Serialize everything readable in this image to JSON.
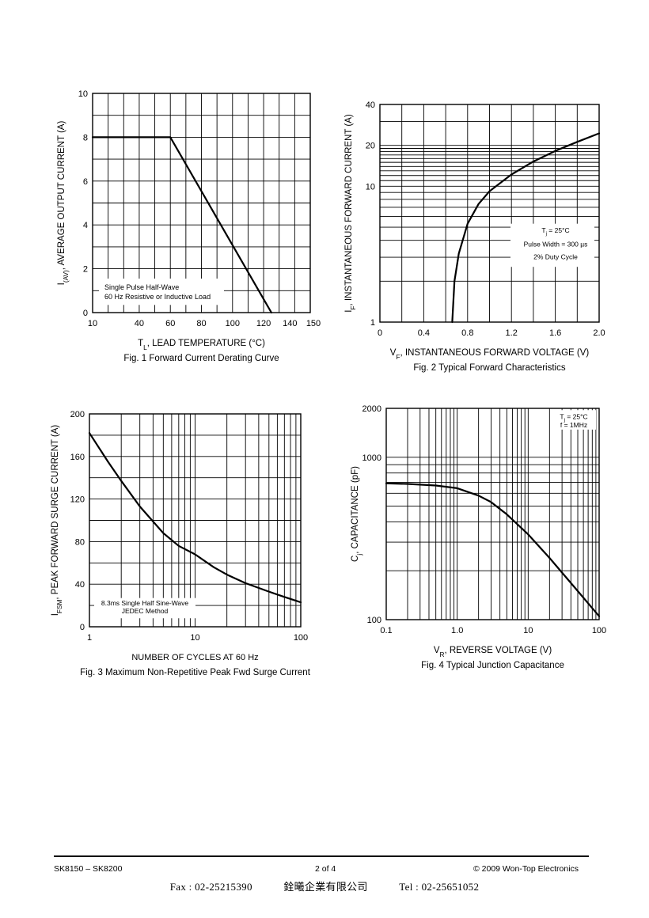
{
  "chart_data": [
    {
      "type": "line",
      "caption": "Fig. 1  Forward Current Derating Curve",
      "xlabel_main": "T",
      "xlabel_sub": "L",
      "xlabel_rest": ", LEAD TEMPERATURE (°C)",
      "ylabel_main": "I",
      "ylabel_sub": "(AV)",
      "ylabel_rest": ", AVERAGE OUTPUT CURRENT (A)",
      "xlim": [
        10,
        150
      ],
      "ylim": [
        0,
        10
      ],
      "xticks": [
        10,
        40,
        60,
        80,
        100,
        120,
        140,
        150
      ],
      "xtick_labels": [
        "10",
        "40",
        "60",
        "80",
        "100",
        "120",
        "140",
        "150"
      ],
      "yticks": [
        0,
        2,
        4,
        6,
        8,
        10
      ],
      "ytick_labels": [
        "0",
        "2",
        "4",
        "6",
        "8",
        "10"
      ],
      "grid": true,
      "series": [
        {
          "x": [
            10,
            60,
            125
          ],
          "y": [
            8,
            8,
            0
          ]
        }
      ],
      "annotation": [
        "Single Pulse Half-Wave",
        "60 Hz Resistive or Inductive Load"
      ]
    },
    {
      "type": "line",
      "caption": "Fig. 2  Typical Forward Characteristics",
      "xlabel_main": "V",
      "xlabel_sub": "F",
      "xlabel_rest": ", INSTANTANEOUS FORWARD VOLTAGE (V)",
      "ylabel_main": "I",
      "ylabel_sub": "F",
      "ylabel_rest": ", INSTANTANEOUS FORWARD CURRENT (A)",
      "xlim": [
        0,
        2.0
      ],
      "ylim": [
        1,
        40
      ],
      "yscale": "log",
      "xticks": [
        0,
        0.4,
        0.8,
        1.2,
        1.6,
        2.0
      ],
      "xtick_labels": [
        "0",
        "0.4",
        "0.8",
        "1.2",
        "1.6",
        "2.0"
      ],
      "yticks": [
        1,
        10,
        20,
        40
      ],
      "ytick_labels": [
        "1",
        "10",
        "20",
        "40"
      ],
      "grid": true,
      "series": [
        {
          "x": [
            0.66,
            0.68,
            0.72,
            0.8,
            0.9,
            1.0,
            1.2,
            1.4,
            1.6,
            1.8,
            2.0
          ],
          "y": [
            1,
            2,
            3.2,
            5.3,
            7.4,
            9.2,
            12.2,
            15.2,
            18.2,
            21.2,
            24.5
          ]
        }
      ],
      "annotation": [
        "T",
        "j",
        " = 25°C",
        "Pulse Width = 300 µs",
        "2% Duty Cycle"
      ]
    },
    {
      "type": "line",
      "caption": "Fig. 3  Maximum Non-Repetitive Peak Fwd Surge Current",
      "xlabel": "NUMBER OF CYCLES AT 60 Hz",
      "ylabel_main": "I",
      "ylabel_sub": "FSM",
      "ylabel_rest": ", PEAK FORWARD SURGE CURRENT (A)",
      "xlim": [
        1,
        100
      ],
      "xscale": "log",
      "ylim": [
        0,
        200
      ],
      "xticks": [
        1,
        10,
        100
      ],
      "xtick_labels": [
        "1",
        "10",
        "100"
      ],
      "yticks": [
        0,
        40,
        80,
        120,
        160,
        200
      ],
      "ytick_labels": [
        "0",
        "40",
        "80",
        "120",
        "160",
        "200"
      ],
      "grid": true,
      "series": [
        {
          "x": [
            1,
            1.5,
            2,
            3,
            5,
            7,
            10,
            15,
            20,
            30,
            50,
            70,
            100
          ],
          "y": [
            182,
            155,
            137,
            113,
            88,
            76,
            68,
            56,
            49,
            41,
            33,
            28,
            23
          ]
        }
      ],
      "annotation": [
        "8.3ms Single Half Sine-Wave",
        "JEDEC Method"
      ]
    },
    {
      "type": "line",
      "caption": "Fig. 4  Typical Junction Capacitance",
      "xlabel_main": "V",
      "xlabel_sub": "R",
      "xlabel_rest": ", REVERSE VOLTAGE (V)",
      "ylabel_main": "C",
      "ylabel_sub": "j",
      "ylabel_rest": ", CAPACITANCE (pF)",
      "xlim": [
        0.1,
        100
      ],
      "xscale": "log",
      "ylim": [
        100,
        2000
      ],
      "yscale": "log",
      "xticks": [
        0.1,
        1,
        10,
        100
      ],
      "xtick_labels": [
        "0.1",
        "1.0",
        "10",
        "100"
      ],
      "yticks": [
        100,
        1000,
        2000
      ],
      "ytick_labels": [
        "100",
        "1000",
        "2000"
      ],
      "grid": true,
      "series": [
        {
          "x": [
            0.1,
            0.2,
            0.5,
            1,
            2,
            3,
            5,
            10,
            20,
            50,
            100
          ],
          "y": [
            690,
            685,
            670,
            645,
            580,
            530,
            445,
            335,
            240,
            150,
            105
          ]
        }
      ],
      "annotation": [
        "T",
        "j",
        " = 25°C",
        "f = 1MHz"
      ]
    }
  ],
  "footer": {
    "left": "SK8150 – SK8200",
    "center": "2 of 4",
    "right": "© 2009 Won-Top Electronics",
    "fax": "Fax : 02-25215390",
    "company": "銓曦企業有限公司",
    "tel": "Tel : 02-25651052"
  }
}
